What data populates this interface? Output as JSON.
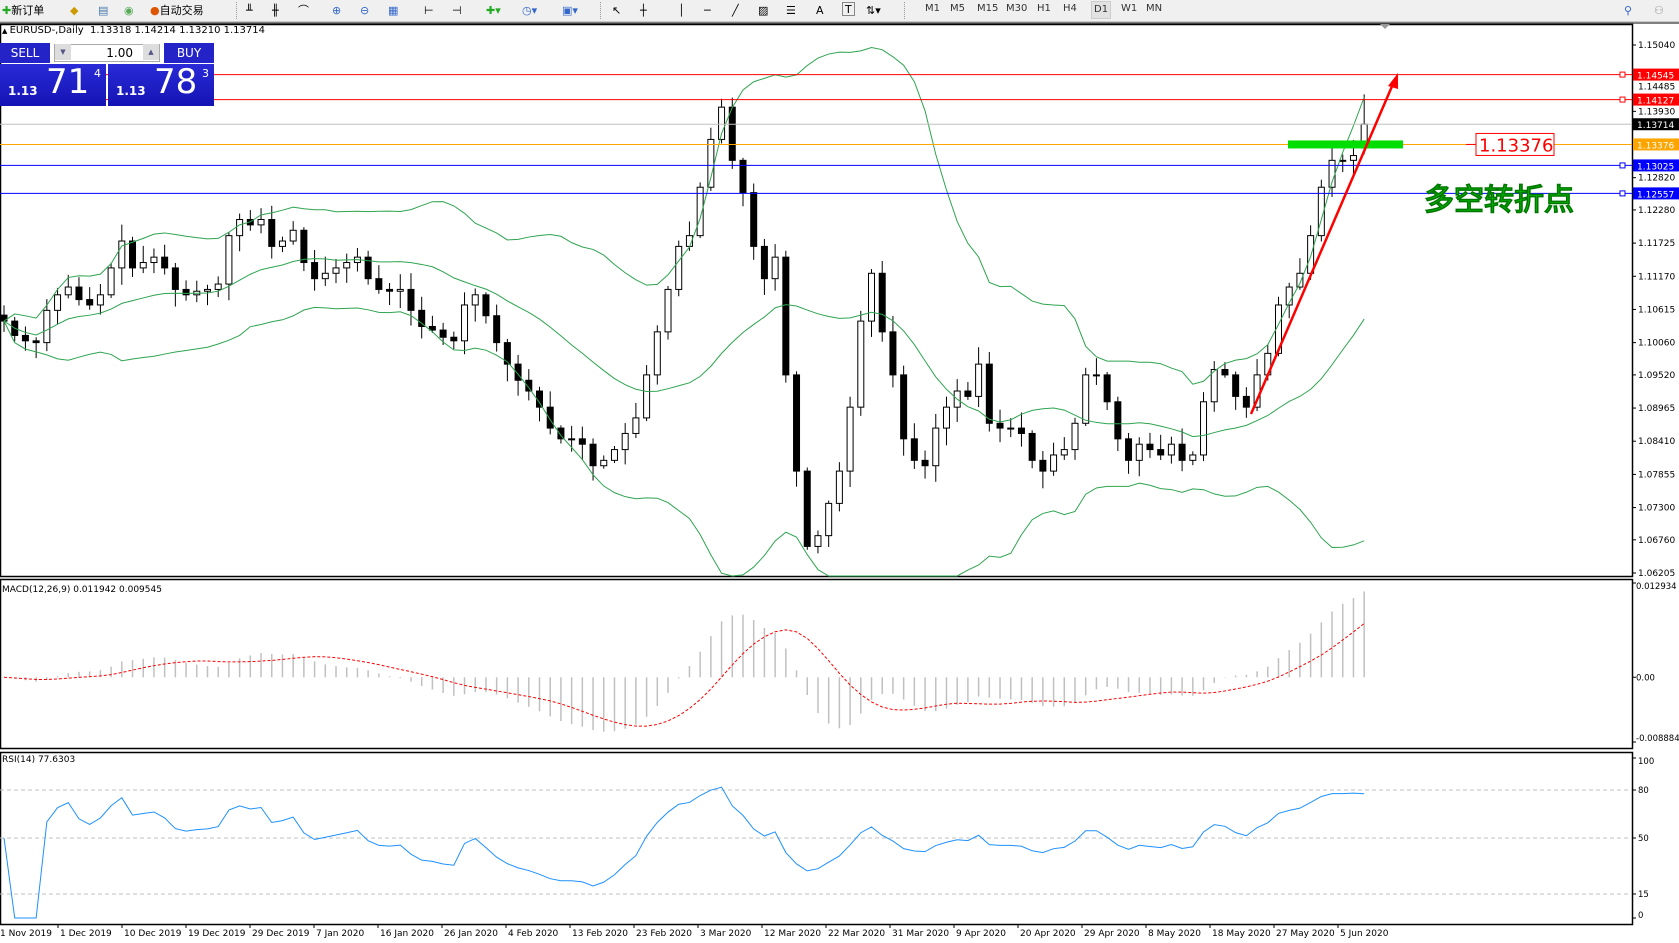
{
  "toolbar": {
    "new_order": "新订单",
    "auto_trading": "自动交易",
    "icons": [
      "new-order-icon",
      "history-icon",
      "market-watch-icon",
      "signals-icon",
      "auto-trading-icon",
      "bar-chart-icon",
      "candlestick-icon",
      "line-chart-icon",
      "zoom-in-icon",
      "zoom-out-icon",
      "tile-windows-icon",
      "chart-shift-icon",
      "autoscroll-icon",
      "indicators-icon",
      "periods-icon",
      "templates-icon",
      "cursor-icon",
      "crosshair-icon",
      "vertical-line-icon",
      "horizontal-line-icon",
      "trendline-icon",
      "equidistant-channel-icon",
      "fibonacci-icon",
      "text-icon",
      "text-label-icon",
      "arrows-icon",
      "search-icon",
      "community-icon"
    ],
    "timeframes": [
      "M1",
      "M5",
      "M15",
      "M30",
      "H1",
      "H4",
      "D1",
      "W1",
      "MN"
    ],
    "active_timeframe": "D1",
    "text_tool": "A",
    "label_tool": "T"
  },
  "header": {
    "symbol": "EURUSD-,Daily",
    "ohlc": "1.13318 1.14214 1.13210 1.13714"
  },
  "trade_panel": {
    "sell_label": "SELL",
    "buy_label": "BUY",
    "lot": "1.00",
    "bid": {
      "prefix": "1.13",
      "big": "71",
      "pip": "4"
    },
    "ask": {
      "prefix": "1.13",
      "big": "78",
      "pip": "3"
    }
  },
  "colors": {
    "up": "#000000",
    "bands": "#2ea44f",
    "macd_hist": "#c0c0c0",
    "macd_signal": "#ff0000",
    "rsi": "#1e90ff",
    "red_line": "#ff0000",
    "orange_line": "#ffa500",
    "blue_line": "#0000ff",
    "green_zone": "#00dd00"
  },
  "annotation": {
    "price_label": "1.13376",
    "text": "多空转折点"
  },
  "chart_data": [
    {
      "type": "candlestick",
      "symbol": "EURUSD-",
      "timeframe": "Daily",
      "ylim": [
        1.06205,
        1.1504
      ],
      "yticks": [
        "1.15040",
        "1.14485",
        "1.13930",
        "1.12820",
        "1.12280",
        "1.11725",
        "1.11170",
        "1.10615",
        "1.10060",
        "1.09520",
        "1.08965",
        "1.08410",
        "1.07855",
        "1.07300",
        "1.06760",
        "1.06205"
      ],
      "xticks": [
        "1 Nov 2019",
        "1 Dec 2019",
        "10 Dec 2019",
        "19 Dec 2019",
        "29 Dec 2019",
        "7 Jan 2020",
        "16 Jan 2020",
        "26 Jan 2020",
        "4 Feb 2020",
        "13 Feb 2020",
        "23 Feb 2020",
        "3 Mar 2020",
        "12 Mar 2020",
        "22 Mar 2020",
        "31 Mar 2020",
        "9 Apr 2020",
        "20 Apr 2020",
        "29 Apr 2020",
        "8 May 2020",
        "18 May 2020",
        "27 May 2020",
        "5 Jun 2020"
      ],
      "closes": [
        1.1042,
        1.1018,
        1.1009,
        1.1006,
        1.106,
        1.1086,
        1.1099,
        1.1078,
        1.1069,
        1.1086,
        1.1131,
        1.1176,
        1.1131,
        1.114,
        1.1149,
        1.1131,
        1.1095,
        1.1086,
        1.1092,
        1.1095,
        1.1104,
        1.1185,
        1.1212,
        1.1203,
        1.1212,
        1.1167,
        1.1176,
        1.1194,
        1.114,
        1.1113,
        1.1122,
        1.1131,
        1.114,
        1.1149,
        1.1113,
        1.1095,
        1.1092,
        1.1095,
        1.106,
        1.1033,
        1.1027,
        1.1015,
        1.1009,
        1.1069,
        1.1086,
        1.1051,
        1.1006,
        1.097,
        1.0943,
        1.0925,
        1.0898,
        1.0863,
        1.0845,
        1.0845,
        1.0836,
        1.08,
        1.0809,
        1.0827,
        1.0854,
        1.088,
        1.0952,
        1.1024,
        1.1095,
        1.1167,
        1.1185,
        1.1266,
        1.1346,
        1.14,
        1.1311,
        1.1257,
        1.1167,
        1.1113,
        1.1149,
        1.0952,
        1.0791,
        1.0665,
        1.0683,
        1.0737,
        1.0791,
        1.0898,
        1.1042,
        1.1122,
        1.1024,
        1.0952,
        1.0845,
        1.0809,
        1.08,
        1.0863,
        1.0898,
        1.0925,
        1.0916,
        1.097,
        1.0871,
        1.0863,
        1.0863,
        1.0854,
        1.0809,
        1.0791,
        1.0818,
        1.0827,
        1.0871,
        1.0952,
        1.0952,
        1.0907,
        1.0845,
        1.0809,
        1.0836,
        1.0827,
        1.0818,
        1.0836,
        1.0809,
        1.0818,
        1.0907,
        1.0961,
        1.0952,
        1.0916,
        1.0898,
        1.0952,
        1.0988,
        1.1069,
        1.1099,
        1.1122,
        1.1185,
        1.1266,
        1.1311,
        1.1311,
        1.1319,
        1.13714
      ],
      "last_bar": {
        "open": 1.13318,
        "high": 1.14214,
        "low": 1.1321,
        "close": 1.13714
      },
      "indicator": "Bollinger Bands",
      "levels": [
        {
          "price": "1.14545",
          "color": "#ff0000"
        },
        {
          "price": "1.14127",
          "color": "#ff0000"
        },
        {
          "price": "1.13714",
          "color": "#c0c0c0",
          "label_bg": "#000000"
        },
        {
          "price": "1.13376",
          "color": "#ffa500"
        },
        {
          "price": "1.13025",
          "color": "#0000ff"
        },
        {
          "price": "1.12557",
          "color": "#0000ff"
        }
      ]
    },
    {
      "type": "bar",
      "title": "MACD(12,26,9) 0.011942 0.009545",
      "ylim": [
        -0.008884,
        0.012934
      ],
      "yticks": [
        "0.012934",
        "0.00",
        "-0.008884"
      ]
    },
    {
      "type": "line",
      "title": "RSI(14) 77.6303",
      "ylim": [
        0,
        100
      ],
      "levels": [
        80,
        50,
        15
      ],
      "yticks": [
        "100",
        "80",
        "50",
        "15",
        "0"
      ]
    }
  ]
}
